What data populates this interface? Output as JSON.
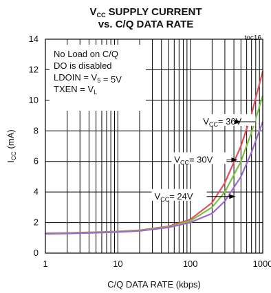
{
  "chart_data": {
    "type": "line",
    "title_line1": {
      "main": "V",
      "sub": "CC",
      "rest": " SUPPLY CURRENT"
    },
    "title_line2": "vs. C/Q DATA RATE",
    "corner_tag": "toc16",
    "xlabel": "C/Q DATA RATE (kbps)",
    "ylabel": {
      "main": "I",
      "sub": "CC",
      "rest": " (mA)"
    },
    "x_scale": "log",
    "xlim": [
      1,
      1000
    ],
    "ylim": [
      0,
      14
    ],
    "x_ticks": [
      1,
      10,
      100,
      1000
    ],
    "x_tick_labels": [
      "1",
      "10",
      "100",
      "1000"
    ],
    "y_ticks": [
      0,
      2,
      4,
      6,
      8,
      10,
      12,
      14
    ],
    "y_tick_labels": [
      "0",
      "2",
      "4",
      "6",
      "8",
      "10",
      "12",
      "14"
    ],
    "grid": true,
    "notes": [
      {
        "parts": [
          {
            "t": "No Load on C/Q"
          }
        ]
      },
      {
        "parts": [
          {
            "t": "DO is disabled"
          }
        ]
      },
      {
        "parts": [
          {
            "t": "LDOIN = V"
          },
          {
            "t": "5",
            "sub": true
          },
          {
            "t": " = 5V"
          }
        ]
      },
      {
        "parts": [
          {
            "t": "TXEN = V"
          },
          {
            "t": "L",
            "sub": true
          }
        ]
      }
    ],
    "series": [
      {
        "label": {
          "main": "V",
          "sub": "CC",
          "rest": "= 36V"
        },
        "color": "#e0505a",
        "x": [
          1,
          2,
          5,
          10,
          20,
          50,
          100,
          200,
          300,
          500,
          700,
          1000
        ],
        "y": [
          1.3,
          1.32,
          1.37,
          1.42,
          1.5,
          1.75,
          2.2,
          3.3,
          4.6,
          7.0,
          9.1,
          11.9
        ]
      },
      {
        "label": {
          "main": "V",
          "sub": "CC",
          "rest": "= 30V"
        },
        "color": "#7cc242",
        "x": [
          1,
          2,
          5,
          10,
          20,
          50,
          100,
          200,
          300,
          500,
          700,
          1000
        ],
        "y": [
          1.28,
          1.3,
          1.35,
          1.4,
          1.48,
          1.72,
          2.1,
          3.0,
          4.0,
          6.0,
          7.9,
          10.3
        ]
      },
      {
        "label": {
          "main": "V",
          "sub": "CC",
          "rest": "= 24V"
        },
        "color": "#9b6bc8",
        "x": [
          1,
          2,
          5,
          10,
          20,
          50,
          100,
          200,
          300,
          500,
          700,
          1000
        ],
        "y": [
          1.26,
          1.28,
          1.33,
          1.38,
          1.45,
          1.68,
          2.0,
          2.6,
          3.4,
          5.0,
          6.6,
          8.6
        ]
      }
    ],
    "annotations": [
      {
        "series": 0,
        "label_x": 150,
        "label_y": 8.6,
        "arrow_to_x": 500,
        "arrow_to_y": 8.6
      },
      {
        "series": 1,
        "label_x": 60,
        "label_y": 6.1,
        "arrow_to_x": 450,
        "arrow_to_y": 6.1
      },
      {
        "series": 2,
        "label_x": 32,
        "label_y": 3.7,
        "arrow_to_x": 420,
        "arrow_to_y": 3.7
      }
    ],
    "colors": {
      "axis": "#000000",
      "grid": "#000000"
    }
  }
}
